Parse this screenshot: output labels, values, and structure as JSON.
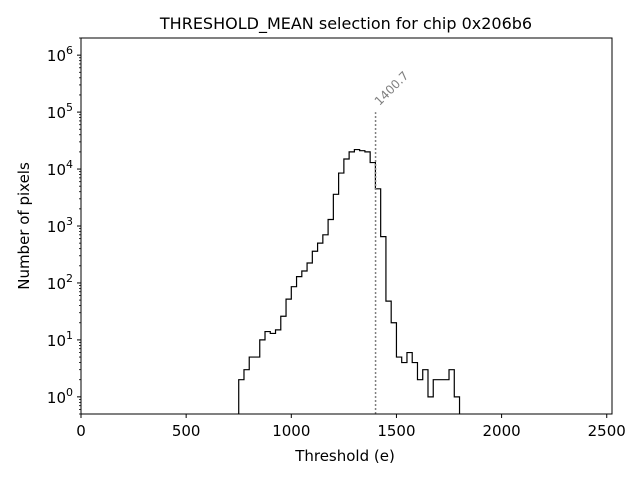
{
  "chart_data": {
    "type": "histogram",
    "title": "THRESHOLD_MEAN selection for chip 0x206b6",
    "xlabel": "Threshold (e)",
    "ylabel": "Number of pixels",
    "yscale": "log",
    "xlim": [
      0,
      2525
    ],
    "ylim": [
      0.5,
      2000000
    ],
    "grid": false,
    "xticks": [
      {
        "value": 0,
        "label": "0"
      },
      {
        "value": 500,
        "label": "500"
      },
      {
        "value": 1000,
        "label": "1000"
      },
      {
        "value": 1500,
        "label": "1500"
      },
      {
        "value": 2000,
        "label": "2000"
      },
      {
        "value": 2500,
        "label": "2500"
      }
    ],
    "yticks": [
      {
        "value": 1,
        "base": "10",
        "exp": "0"
      },
      {
        "value": 10,
        "base": "10",
        "exp": "1"
      },
      {
        "value": 100,
        "base": "10",
        "exp": "2"
      },
      {
        "value": 1000,
        "base": "10",
        "exp": "3"
      },
      {
        "value": 10000,
        "base": "10",
        "exp": "4"
      },
      {
        "value": 100000,
        "base": "10",
        "exp": "5"
      },
      {
        "value": 1000000,
        "base": "10",
        "exp": "6"
      }
    ],
    "bin_width": 25,
    "bin_start": 750,
    "counts": [
      2,
      3,
      5,
      5,
      10,
      14,
      13,
      15,
      26,
      52,
      86,
      129,
      162,
      224,
      360,
      500,
      700,
      1300,
      3600,
      8500,
      15000,
      20000,
      22000,
      21000,
      20000,
      13000,
      4500,
      650,
      48,
      20,
      5,
      4,
      6,
      4,
      2,
      3,
      1,
      2,
      2,
      2,
      3,
      1
    ],
    "line_color": "#000000",
    "marker": {
      "value": 1400.7,
      "label": "1400.7",
      "y_top": 100000,
      "color": "#808080",
      "style": "dotted"
    }
  }
}
